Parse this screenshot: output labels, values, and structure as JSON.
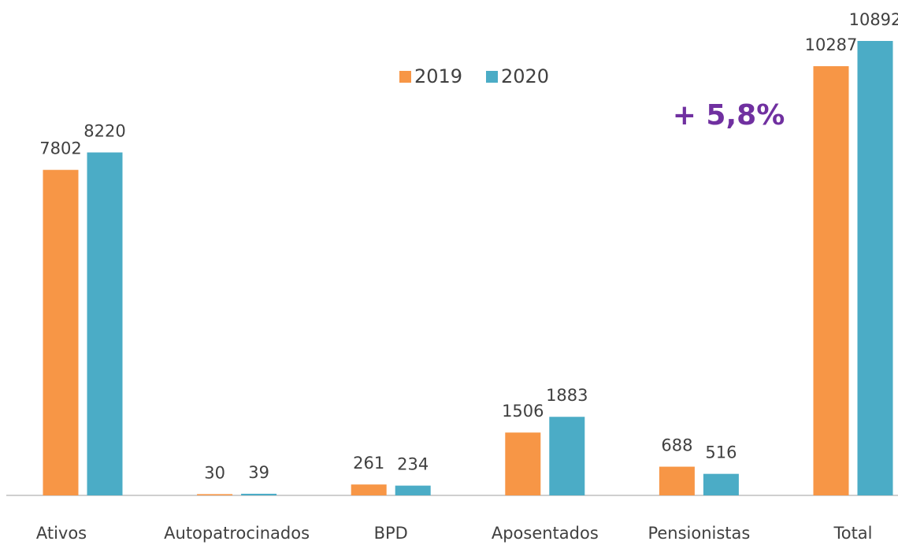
{
  "chart_data": {
    "type": "bar",
    "categories": [
      "Ativos",
      "Autopatrocinados",
      "BPD",
      "Aposentados",
      "Pensionistas",
      "Total"
    ],
    "series": [
      {
        "name": "2019",
        "color": "#f79646",
        "values": [
          7802,
          30,
          261,
          1506,
          688,
          10287
        ]
      },
      {
        "name": "2020",
        "color": "#4bacc6",
        "values": [
          8220,
          39,
          234,
          1883,
          516,
          10892
        ]
      }
    ],
    "annotation": "+ 5,8%",
    "annotation_color": "#7030a0"
  }
}
